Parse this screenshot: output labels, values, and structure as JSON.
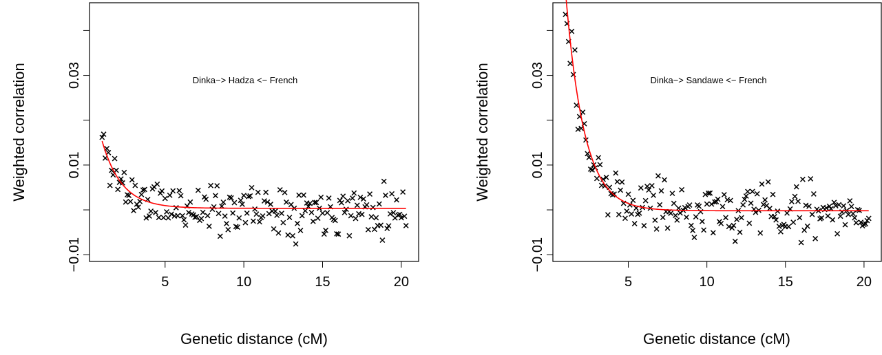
{
  "chart_data": [
    {
      "type": "scatter",
      "annotation": "Dinka−> Hadza <− French",
      "xlabel": "Genetic distance (cM)",
      "ylabel": "Weighted correlation",
      "xlim": [
        0.2,
        21.1
      ],
      "ylim": [
        -0.0115,
        0.0462
      ],
      "xticks": [
        5,
        10,
        15,
        20
      ],
      "xtick_labels": [
        "5",
        "10",
        "15",
        "20"
      ],
      "yticks": [
        -0.01,
        0.01,
        0.03
      ],
      "ytick_labels": [
        "−0.01",
        "0.01",
        "0.03"
      ],
      "minor_yticks": [
        0.0,
        0.02,
        0.04
      ],
      "grid": false,
      "marker": "x",
      "fit_curve": {
        "color": "#ff0000",
        "x_start": 1.0,
        "x_end": 20.3,
        "amplitude": 0.015,
        "rate": 0.8,
        "asymptote": 0.00035
      },
      "points": {
        "x_start": 1.0,
        "x_end": 20.3,
        "count": 194,
        "seed": 11,
        "amplitude": 0.015,
        "rate": 0.8,
        "asymptote": 0.00035,
        "noise": 0.004
      }
    },
    {
      "type": "scatter",
      "annotation": "Dinka−> Sandawe <− French",
      "xlabel": "Genetic distance (cM)",
      "ylabel": "Weighted correlation",
      "xlim": [
        0.2,
        21.1
      ],
      "ylim": [
        -0.0115,
        0.0462
      ],
      "xticks": [
        5,
        10,
        15,
        20
      ],
      "xtick_labels": [
        "5",
        "10",
        "15",
        "20"
      ],
      "yticks": [
        -0.01,
        0.01,
        0.03
      ],
      "ytick_labels": [
        "−0.01",
        "0.01",
        "0.03"
      ],
      "minor_yticks": [
        0.0,
        0.02,
        0.04
      ],
      "grid": false,
      "marker": "x",
      "fit_curve": {
        "color": "#ff0000",
        "x_start": 1.0,
        "x_end": 20.3,
        "amplitude": 0.049,
        "rate": 0.85,
        "asymptote": -0.0002
      },
      "points": {
        "x_start": 1.0,
        "x_end": 20.3,
        "count": 194,
        "seed": 29,
        "amplitude": 0.049,
        "rate": 0.85,
        "asymptote": -0.0002,
        "noise": 0.0045
      }
    }
  ]
}
